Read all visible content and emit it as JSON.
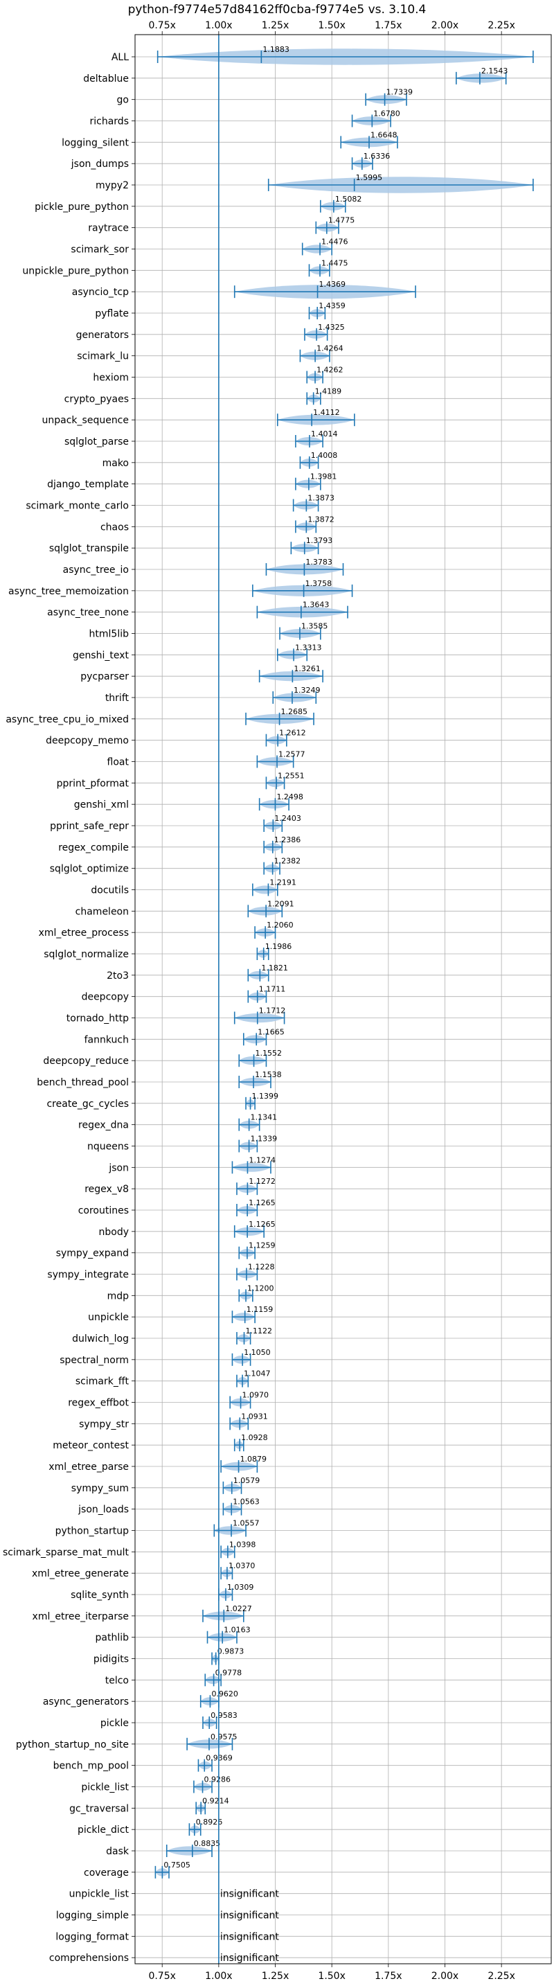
{
  "chart_data": {
    "type": "violin",
    "title": "python-f9774e57d84162ff0cba-f9774e5 vs. 3.10.4",
    "orientation": "horizontal",
    "xlim": [
      0.63,
      2.47
    ],
    "xticks": [
      0.75,
      1.0,
      1.25,
      1.5,
      1.75,
      2.0,
      2.25
    ],
    "xtick_labels": [
      "0.75x",
      "1.00x",
      "1.25x",
      "1.50x",
      "1.75x",
      "2.00x",
      "2.25x"
    ],
    "reference_line": 1.0,
    "grid": true,
    "colors": {
      "violin": "#aac9e6",
      "line": "#1f77b4",
      "grid": "#b0b0b0"
    },
    "insignificant_text": "insignificant",
    "benchmarks": [
      {
        "name": "ALL",
        "value": "1.1883",
        "median": 1.1883,
        "min": 0.73,
        "max": 2.39
      },
      {
        "name": "deltablue",
        "value": "2.1543",
        "median": 2.1543,
        "min": 2.05,
        "max": 2.27
      },
      {
        "name": "go",
        "value": "1.7339",
        "median": 1.7339,
        "min": 1.65,
        "max": 1.83
      },
      {
        "name": "richards",
        "value": "1.6780",
        "median": 1.678,
        "min": 1.59,
        "max": 1.76
      },
      {
        "name": "logging_silent",
        "value": "1.6648",
        "median": 1.6648,
        "min": 1.54,
        "max": 1.79
      },
      {
        "name": "json_dumps",
        "value": "1.6336",
        "median": 1.6336,
        "min": 1.59,
        "max": 1.68
      },
      {
        "name": "mypy2",
        "value": "1.5995",
        "median": 1.5995,
        "min": 1.22,
        "max": 2.39
      },
      {
        "name": "pickle_pure_python",
        "value": "1.5082",
        "median": 1.5082,
        "min": 1.45,
        "max": 1.56
      },
      {
        "name": "raytrace",
        "value": "1.4775",
        "median": 1.4775,
        "min": 1.43,
        "max": 1.53
      },
      {
        "name": "scimark_sor",
        "value": "1.4476",
        "median": 1.4476,
        "min": 1.37,
        "max": 1.5
      },
      {
        "name": "unpickle_pure_python",
        "value": "1.4475",
        "median": 1.4475,
        "min": 1.4,
        "max": 1.49
      },
      {
        "name": "asyncio_tcp",
        "value": "1.4369",
        "median": 1.4369,
        "min": 1.07,
        "max": 1.87
      },
      {
        "name": "pyflate",
        "value": "1.4359",
        "median": 1.4359,
        "min": 1.4,
        "max": 1.47
      },
      {
        "name": "generators",
        "value": "1.4325",
        "median": 1.4325,
        "min": 1.38,
        "max": 1.48
      },
      {
        "name": "scimark_lu",
        "value": "1.4264",
        "median": 1.4264,
        "min": 1.36,
        "max": 1.49
      },
      {
        "name": "hexiom",
        "value": "1.4262",
        "median": 1.4262,
        "min": 1.39,
        "max": 1.46
      },
      {
        "name": "crypto_pyaes",
        "value": "1.4189",
        "median": 1.4189,
        "min": 1.39,
        "max": 1.45
      },
      {
        "name": "unpack_sequence",
        "value": "1.4112",
        "median": 1.4112,
        "min": 1.26,
        "max": 1.6
      },
      {
        "name": "sqlglot_parse",
        "value": "1.4014",
        "median": 1.4014,
        "min": 1.34,
        "max": 1.46
      },
      {
        "name": "mako",
        "value": "1.4008",
        "median": 1.4008,
        "min": 1.36,
        "max": 1.44
      },
      {
        "name": "django_template",
        "value": "1.3981",
        "median": 1.3981,
        "min": 1.34,
        "max": 1.45
      },
      {
        "name": "scimark_monte_carlo",
        "value": "1.3873",
        "median": 1.3873,
        "min": 1.33,
        "max": 1.44
      },
      {
        "name": "chaos",
        "value": "1.3872",
        "median": 1.3872,
        "min": 1.34,
        "max": 1.43
      },
      {
        "name": "sqlglot_transpile",
        "value": "1.3793",
        "median": 1.3793,
        "min": 1.32,
        "max": 1.44
      },
      {
        "name": "async_tree_io",
        "value": "1.3783",
        "median": 1.3783,
        "min": 1.21,
        "max": 1.55
      },
      {
        "name": "async_tree_memoization",
        "value": "1.3758",
        "median": 1.3758,
        "min": 1.15,
        "max": 1.59
      },
      {
        "name": "async_tree_none",
        "value": "1.3643",
        "median": 1.3643,
        "min": 1.17,
        "max": 1.57
      },
      {
        "name": "html5lib",
        "value": "1.3585",
        "median": 1.3585,
        "min": 1.27,
        "max": 1.45
      },
      {
        "name": "genshi_text",
        "value": "1.3313",
        "median": 1.3313,
        "min": 1.26,
        "max": 1.39
      },
      {
        "name": "pycparser",
        "value": "1.3261",
        "median": 1.3261,
        "min": 1.18,
        "max": 1.46
      },
      {
        "name": "thrift",
        "value": "1.3249",
        "median": 1.3249,
        "min": 1.24,
        "max": 1.43
      },
      {
        "name": "async_tree_cpu_io_mixed",
        "value": "1.2685",
        "median": 1.2685,
        "min": 1.12,
        "max": 1.42
      },
      {
        "name": "deepcopy_memo",
        "value": "1.2612",
        "median": 1.2612,
        "min": 1.21,
        "max": 1.3
      },
      {
        "name": "float",
        "value": "1.2577",
        "median": 1.2577,
        "min": 1.17,
        "max": 1.33
      },
      {
        "name": "pprint_pformat",
        "value": "1.2551",
        "median": 1.2551,
        "min": 1.21,
        "max": 1.29
      },
      {
        "name": "genshi_xml",
        "value": "1.2498",
        "median": 1.2498,
        "min": 1.18,
        "max": 1.31
      },
      {
        "name": "pprint_safe_repr",
        "value": "1.2403",
        "median": 1.2403,
        "min": 1.2,
        "max": 1.28
      },
      {
        "name": "regex_compile",
        "value": "1.2386",
        "median": 1.2386,
        "min": 1.2,
        "max": 1.28
      },
      {
        "name": "sqlglot_optimize",
        "value": "1.2382",
        "median": 1.2382,
        "min": 1.2,
        "max": 1.27
      },
      {
        "name": "docutils",
        "value": "1.2191",
        "median": 1.2191,
        "min": 1.15,
        "max": 1.26
      },
      {
        "name": "chameleon",
        "value": "1.2091",
        "median": 1.2091,
        "min": 1.13,
        "max": 1.28
      },
      {
        "name": "xml_etree_process",
        "value": "1.2060",
        "median": 1.206,
        "min": 1.16,
        "max": 1.25
      },
      {
        "name": "sqlglot_normalize",
        "value": "1.1986",
        "median": 1.1986,
        "min": 1.17,
        "max": 1.22
      },
      {
        "name": "2to3",
        "value": "1.1821",
        "median": 1.1821,
        "min": 1.13,
        "max": 1.22
      },
      {
        "name": "deepcopy",
        "value": "1.1711",
        "median": 1.1711,
        "min": 1.13,
        "max": 1.21
      },
      {
        "name": "tornado_http",
        "value": "1.1712",
        "median": 1.1712,
        "min": 1.07,
        "max": 1.29
      },
      {
        "name": "fannkuch",
        "value": "1.1665",
        "median": 1.1665,
        "min": 1.11,
        "max": 1.21
      },
      {
        "name": "deepcopy_reduce",
        "value": "1.1552",
        "median": 1.1552,
        "min": 1.09,
        "max": 1.21
      },
      {
        "name": "bench_thread_pool",
        "value": "1.1538",
        "median": 1.1538,
        "min": 1.09,
        "max": 1.23
      },
      {
        "name": "create_gc_cycles",
        "value": "1.1399",
        "median": 1.1399,
        "min": 1.12,
        "max": 1.16
      },
      {
        "name": "regex_dna",
        "value": "1.1341",
        "median": 1.1341,
        "min": 1.09,
        "max": 1.18
      },
      {
        "name": "nqueens",
        "value": "1.1339",
        "median": 1.1339,
        "min": 1.09,
        "max": 1.17
      },
      {
        "name": "json",
        "value": "1.1274",
        "median": 1.1274,
        "min": 1.06,
        "max": 1.23
      },
      {
        "name": "regex_v8",
        "value": "1.1272",
        "median": 1.1272,
        "min": 1.08,
        "max": 1.17
      },
      {
        "name": "coroutines",
        "value": "1.1265",
        "median": 1.1265,
        "min": 1.08,
        "max": 1.17
      },
      {
        "name": "nbody",
        "value": "1.1265",
        "median": 1.1265,
        "min": 1.07,
        "max": 1.2
      },
      {
        "name": "sympy_expand",
        "value": "1.1259",
        "median": 1.1259,
        "min": 1.09,
        "max": 1.16
      },
      {
        "name": "sympy_integrate",
        "value": "1.1228",
        "median": 1.1228,
        "min": 1.08,
        "max": 1.17
      },
      {
        "name": "mdp",
        "value": "1.1200",
        "median": 1.12,
        "min": 1.09,
        "max": 1.15
      },
      {
        "name": "unpickle",
        "value": "1.1159",
        "median": 1.1159,
        "min": 1.06,
        "max": 1.16
      },
      {
        "name": "dulwich_log",
        "value": "1.1122",
        "median": 1.1122,
        "min": 1.08,
        "max": 1.14
      },
      {
        "name": "spectral_norm",
        "value": "1.1050",
        "median": 1.105,
        "min": 1.06,
        "max": 1.14
      },
      {
        "name": "scimark_fft",
        "value": "1.1047",
        "median": 1.1047,
        "min": 1.08,
        "max": 1.13
      },
      {
        "name": "regex_effbot",
        "value": "1.0970",
        "median": 1.097,
        "min": 1.05,
        "max": 1.14
      },
      {
        "name": "sympy_str",
        "value": "1.0931",
        "median": 1.0931,
        "min": 1.05,
        "max": 1.13
      },
      {
        "name": "meteor_contest",
        "value": "1.0928",
        "median": 1.0928,
        "min": 1.07,
        "max": 1.11
      },
      {
        "name": "xml_etree_parse",
        "value": "1.0879",
        "median": 1.0879,
        "min": 1.01,
        "max": 1.17
      },
      {
        "name": "sympy_sum",
        "value": "1.0579",
        "median": 1.0579,
        "min": 1.02,
        "max": 1.1
      },
      {
        "name": "json_loads",
        "value": "1.0563",
        "median": 1.0563,
        "min": 1.02,
        "max": 1.1
      },
      {
        "name": "python_startup",
        "value": "1.0557",
        "median": 1.0557,
        "min": 0.98,
        "max": 1.12
      },
      {
        "name": "scimark_sparse_mat_mult",
        "value": "1.0398",
        "median": 1.0398,
        "min": 1.01,
        "max": 1.07
      },
      {
        "name": "xml_etree_generate",
        "value": "1.0370",
        "median": 1.037,
        "min": 1.01,
        "max": 1.06
      },
      {
        "name": "sqlite_synth",
        "value": "1.0309",
        "median": 1.0309,
        "min": 1.0,
        "max": 1.06
      },
      {
        "name": "xml_etree_iterparse",
        "value": "1.0227",
        "median": 1.0227,
        "min": 0.93,
        "max": 1.11
      },
      {
        "name": "pathlib",
        "value": "1.0163",
        "median": 1.0163,
        "min": 0.95,
        "max": 1.08
      },
      {
        "name": "pidigits",
        "value": "0.9873",
        "median": 0.9873,
        "min": 0.97,
        "max": 1.0
      },
      {
        "name": "telco",
        "value": "0.9778",
        "median": 0.9778,
        "min": 0.94,
        "max": 1.01
      },
      {
        "name": "async_generators",
        "value": "0.9620",
        "median": 0.962,
        "min": 0.92,
        "max": 1.0
      },
      {
        "name": "pickle",
        "value": "0.9583",
        "median": 0.9583,
        "min": 0.93,
        "max": 0.99
      },
      {
        "name": "python_startup_no_site",
        "value": "0.9575",
        "median": 0.9575,
        "min": 0.86,
        "max": 1.06
      },
      {
        "name": "bench_mp_pool",
        "value": "0.9369",
        "median": 0.9369,
        "min": 0.91,
        "max": 0.97
      },
      {
        "name": "pickle_list",
        "value": "0.9286",
        "median": 0.9286,
        "min": 0.89,
        "max": 0.97
      },
      {
        "name": "gc_traversal",
        "value": "0.9214",
        "median": 0.9214,
        "min": 0.9,
        "max": 0.94
      },
      {
        "name": "pickle_dict",
        "value": "0.8926",
        "median": 0.8926,
        "min": 0.87,
        "max": 0.92
      },
      {
        "name": "dask",
        "value": "0.8835",
        "median": 0.8835,
        "min": 0.77,
        "max": 0.97
      },
      {
        "name": "coverage",
        "value": "0.7505",
        "median": 0.7505,
        "min": 0.72,
        "max": 0.78
      },
      {
        "name": "unpickle_list",
        "value": "insignificant",
        "median": null,
        "min": null,
        "max": null
      },
      {
        "name": "logging_simple",
        "value": "insignificant",
        "median": null,
        "min": null,
        "max": null
      },
      {
        "name": "logging_format",
        "value": "insignificant",
        "median": null,
        "min": null,
        "max": null
      },
      {
        "name": "comprehensions",
        "value": "insignificant",
        "median": null,
        "min": null,
        "max": null
      }
    ]
  }
}
